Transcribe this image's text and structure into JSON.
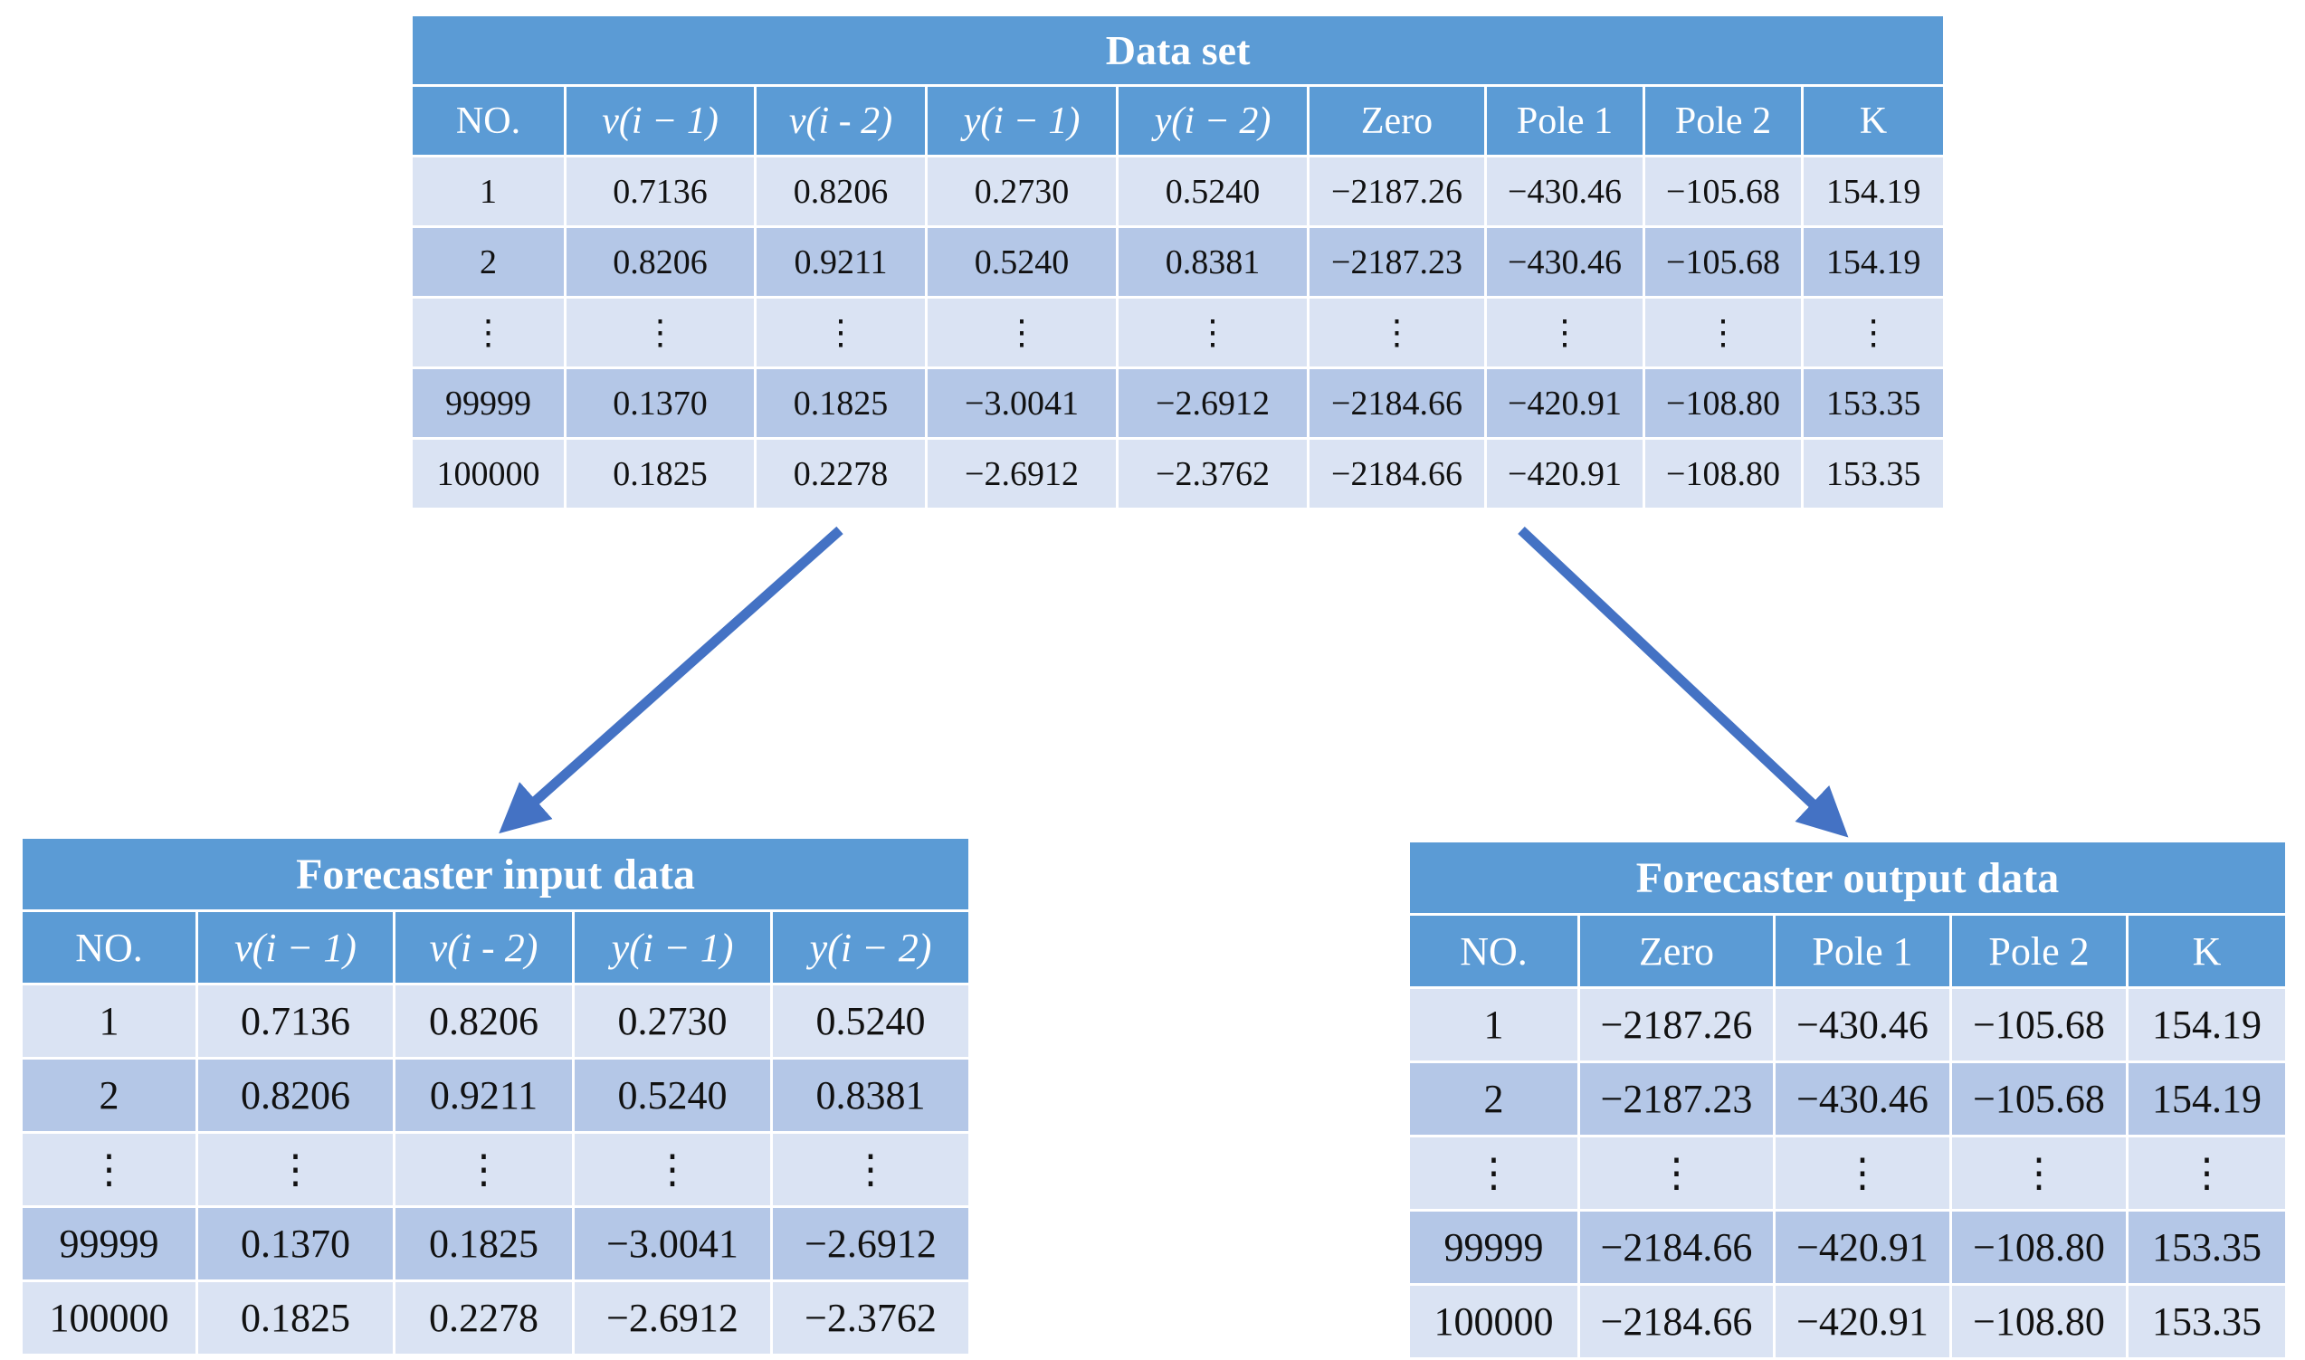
{
  "dataset": {
    "title": "Data set",
    "headers": [
      "NO.",
      "v(i − 1)",
      "v(i - 2)",
      "y(i − 1)",
      "y(i − 2)",
      "Zero",
      "Pole 1",
      "Pole 2",
      "K"
    ],
    "rows": [
      [
        "1",
        "0.7136",
        "0.8206",
        "0.2730",
        "0.5240",
        "−2187.26",
        "−430.46",
        "−105.68",
        "154.19"
      ],
      [
        "2",
        "0.8206",
        "0.9211",
        "0.5240",
        "0.8381",
        "−2187.23",
        "−430.46",
        "−105.68",
        "154.19"
      ],
      [
        "⋮",
        "⋮",
        "⋮",
        "⋮",
        "⋮",
        "⋮",
        "⋮",
        "⋮",
        "⋮"
      ],
      [
        "99999",
        "0.1370",
        "0.1825",
        "−3.0041",
        "−2.6912",
        "−2184.66",
        "−420.91",
        "−108.80",
        "153.35"
      ],
      [
        "100000",
        "0.1825",
        "0.2278",
        "−2.6912",
        "−2.3762",
        "−2184.66",
        "−420.91",
        "−108.80",
        "153.35"
      ]
    ]
  },
  "input": {
    "title": "Forecaster input data",
    "headers": [
      "NO.",
      "v(i − 1)",
      "v(i - 2)",
      "y(i − 1)",
      "y(i − 2)"
    ],
    "rows": [
      [
        "1",
        "0.7136",
        "0.8206",
        "0.2730",
        "0.5240"
      ],
      [
        "2",
        "0.8206",
        "0.9211",
        "0.5240",
        "0.8381"
      ],
      [
        "⋮",
        "⋮",
        "⋮",
        "⋮",
        "⋮"
      ],
      [
        "99999",
        "0.1370",
        "0.1825",
        "−3.0041",
        "−2.6912"
      ],
      [
        "100000",
        "0.1825",
        "0.2278",
        "−2.6912",
        "−2.3762"
      ]
    ]
  },
  "output": {
    "title": "Forecaster output data",
    "headers": [
      "NO.",
      "Zero",
      "Pole 1",
      "Pole 2",
      "K"
    ],
    "rows": [
      [
        "1",
        "−2187.26",
        "−430.46",
        "−105.68",
        "154.19"
      ],
      [
        "2",
        "−2187.23",
        "−430.46",
        "−105.68",
        "154.19"
      ],
      [
        "⋮",
        "⋮",
        "⋮",
        "⋮",
        "⋮"
      ],
      [
        "99999",
        "−2184.66",
        "−420.91",
        "−108.80",
        "153.35"
      ],
      [
        "100000",
        "−2184.66",
        "−420.91",
        "−108.80",
        "153.35"
      ]
    ]
  },
  "colors": {
    "header_blue": "#5b9bd5",
    "row_light": "#dae3f3",
    "row_dark": "#b4c7e7",
    "arrow_blue": "#4472c4"
  }
}
